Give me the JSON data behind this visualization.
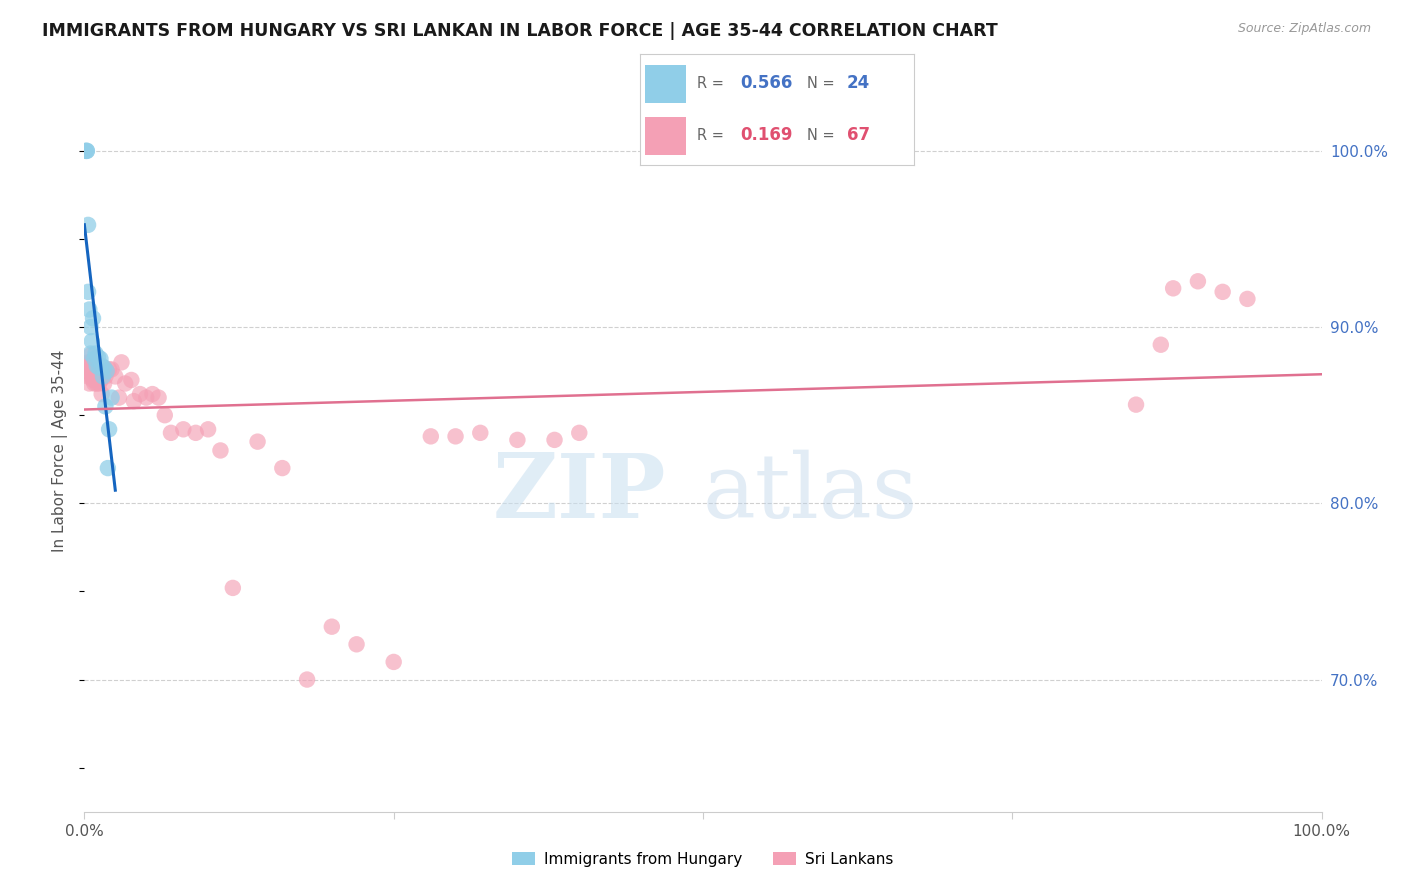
{
  "title": "IMMIGRANTS FROM HUNGARY VS SRI LANKAN IN LABOR FORCE | AGE 35-44 CORRELATION CHART",
  "source": "Source: ZipAtlas.com",
  "ylabel": "In Labor Force | Age 35-44",
  "color_hungary": "#90CEE8",
  "color_srilanka": "#F4A0B5",
  "color_line_hungary": "#1565C0",
  "color_line_srilanka": "#E07090",
  "color_right_axis": "#4472C4",
  "hungary_x": [
    0.001,
    0.002,
    0.002,
    0.003,
    0.003,
    0.004,
    0.005,
    0.005,
    0.006,
    0.007,
    0.008,
    0.009,
    0.01,
    0.011,
    0.012,
    0.013,
    0.014,
    0.015,
    0.016,
    0.017,
    0.018,
    0.019,
    0.02,
    0.022
  ],
  "hungary_y": [
    1.0,
    1.0,
    1.0,
    0.958,
    0.92,
    0.91,
    0.9,
    0.885,
    0.892,
    0.905,
    0.882,
    0.885,
    0.878,
    0.883,
    0.877,
    0.882,
    0.878,
    0.872,
    0.877,
    0.855,
    0.875,
    0.82,
    0.842,
    0.86
  ],
  "srilanka_x": [
    0.001,
    0.002,
    0.003,
    0.003,
    0.004,
    0.004,
    0.005,
    0.005,
    0.006,
    0.006,
    0.007,
    0.007,
    0.008,
    0.008,
    0.009,
    0.009,
    0.01,
    0.01,
    0.011,
    0.011,
    0.012,
    0.012,
    0.013,
    0.013,
    0.014,
    0.015,
    0.016,
    0.016,
    0.017,
    0.018,
    0.02,
    0.022,
    0.025,
    0.028,
    0.03,
    0.033,
    0.038,
    0.04,
    0.045,
    0.05,
    0.055,
    0.06,
    0.065,
    0.07,
    0.08,
    0.09,
    0.1,
    0.11,
    0.12,
    0.14,
    0.16,
    0.18,
    0.2,
    0.22,
    0.25,
    0.28,
    0.3,
    0.32,
    0.35,
    0.38,
    0.4,
    0.85,
    0.87,
    0.88,
    0.9,
    0.92,
    0.94
  ],
  "srilanka_y": [
    0.878,
    0.875,
    0.88,
    0.872,
    0.876,
    0.868,
    0.88,
    0.884,
    0.872,
    0.878,
    0.87,
    0.875,
    0.868,
    0.875,
    0.872,
    0.87,
    0.868,
    0.874,
    0.874,
    0.87,
    0.874,
    0.868,
    0.87,
    0.875,
    0.862,
    0.875,
    0.874,
    0.868,
    0.872,
    0.875,
    0.876,
    0.876,
    0.872,
    0.86,
    0.88,
    0.868,
    0.87,
    0.858,
    0.862,
    0.86,
    0.862,
    0.86,
    0.85,
    0.84,
    0.842,
    0.84,
    0.842,
    0.83,
    0.752,
    0.835,
    0.82,
    0.7,
    0.73,
    0.72,
    0.71,
    0.838,
    0.838,
    0.84,
    0.836,
    0.836,
    0.84,
    0.856,
    0.89,
    0.922,
    0.926,
    0.92,
    0.916
  ],
  "xlim": [
    0.0,
    1.0
  ],
  "ylim": [
    0.625,
    1.035
  ],
  "yticks_right": [
    1.0,
    0.9,
    0.8,
    0.7
  ],
  "ytick_labels_right": [
    "100.0%",
    "90.0%",
    "80.0%",
    "70.0%"
  ],
  "xticks": [
    0.0,
    1.0
  ],
  "xtick_labels": [
    "0.0%",
    "100.0%"
  ],
  "legend_r1": "0.566",
  "legend_n1": "24",
  "legend_r2": "0.169",
  "legend_n2": "67",
  "watermark_zip": "ZIP",
  "watermark_atlas": "atlas",
  "bottom_legend_1": "Immigrants from Hungary",
  "bottom_legend_2": "Sri Lankans"
}
